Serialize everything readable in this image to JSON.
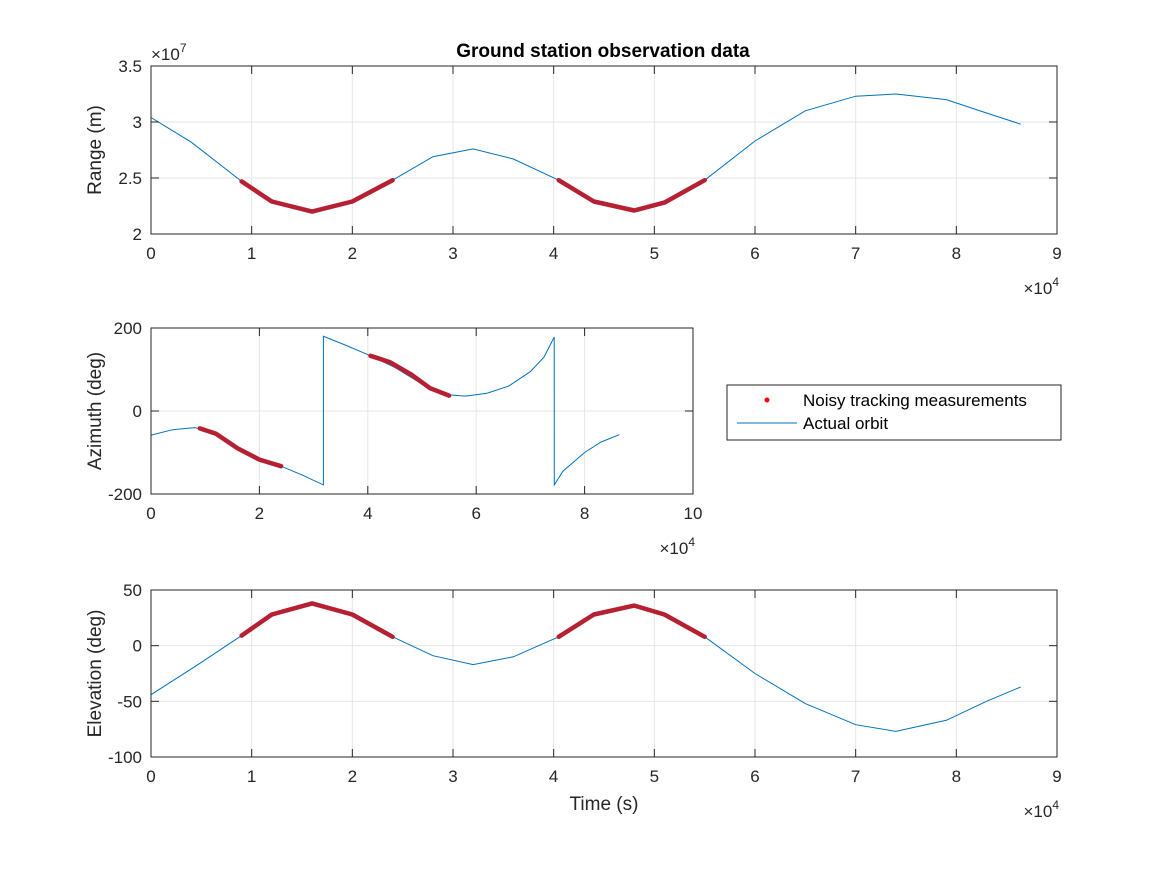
{
  "chart_data": [
    {
      "type": "line",
      "title": "Ground station observation data",
      "ylabel": "Range (m)",
      "xlabel": "",
      "xlim": [
        0,
        90000
      ],
      "ylim": [
        20000000,
        35000000
      ],
      "x_ticks": [
        0,
        10000,
        20000,
        30000,
        40000,
        50000,
        60000,
        70000,
        80000,
        90000
      ],
      "x_tick_labels": [
        "0",
        "1",
        "2",
        "3",
        "4",
        "5",
        "6",
        "7",
        "8",
        "9"
      ],
      "y_ticks": [
        20000000,
        25000000,
        30000000,
        35000000
      ],
      "y_tick_labels": [
        "2",
        "2.5",
        "3",
        "3.5"
      ],
      "x_multiplier": {
        "base": "×10",
        "exp": "4"
      },
      "y_multiplier": {
        "base": "×10",
        "exp": "7"
      },
      "grid": true,
      "line_x": [
        0,
        4000,
        9000,
        12000,
        16000,
        20000,
        24000,
        28000,
        32000,
        36000,
        40500,
        44000,
        48000,
        51000,
        55000,
        60000,
        65000,
        70000,
        74000,
        79000,
        83000,
        86400
      ],
      "line_y": [
        30400000,
        28200000,
        24700000,
        22900000,
        22000000,
        22900000,
        24800000,
        26900000,
        27600000,
        26700000,
        24800000,
        22900000,
        22100000,
        22800000,
        24800000,
        28300000,
        31000000,
        32300000,
        32500000,
        32000000,
        30800000,
        29800000
      ],
      "measurement_segments": [
        {
          "x": [
            9000,
            12000,
            16000,
            20000,
            24000
          ],
          "y": [
            24700000,
            22900000,
            22000000,
            22900000,
            24800000
          ]
        },
        {
          "x": [
            40500,
            44000,
            48000,
            51000,
            55000
          ],
          "y": [
            24800000,
            22900000,
            22100000,
            22800000,
            24800000
          ]
        }
      ]
    },
    {
      "type": "line",
      "title": "",
      "ylabel": "Azimuth (deg)",
      "xlabel": "",
      "xlim": [
        0,
        100000
      ],
      "ylim": [
        -200,
        200
      ],
      "x_ticks": [
        0,
        20000,
        40000,
        60000,
        80000,
        100000
      ],
      "x_tick_labels": [
        "0",
        "2",
        "4",
        "6",
        "8",
        "10"
      ],
      "y_ticks": [
        -200,
        0,
        200
      ],
      "y_tick_labels": [
        "-200",
        "0",
        "200"
      ],
      "x_multiplier": {
        "base": "×10",
        "exp": "4"
      },
      "grid": true,
      "line_x": [
        0,
        4000,
        8000,
        10000,
        14000,
        18000,
        22000,
        24000,
        28000,
        31800,
        31801,
        36000,
        40500,
        45000,
        50000,
        54000,
        58000,
        62000,
        66000,
        70000,
        72500,
        74400,
        74401,
        76000,
        80000,
        83000,
        86400
      ],
      "line_y": [
        -58,
        -45,
        -40,
        -45,
        -70,
        -104,
        -125,
        -133,
        -155,
        -178,
        180,
        158,
        133,
        105,
        65,
        40,
        36,
        43,
        60,
        95,
        130,
        178,
        -178,
        -145,
        -100,
        -75,
        -57
      ],
      "measurement_segments": [
        {
          "x": [
            9000,
            12000,
            16000,
            20000,
            24000
          ],
          "y": [
            -42,
            -55,
            -90,
            -117,
            -133
          ]
        },
        {
          "x": [
            40500,
            44000,
            48000,
            51500,
            55000
          ],
          "y": [
            133,
            118,
            88,
            55,
            37
          ]
        }
      ]
    },
    {
      "type": "line",
      "title": "",
      "ylabel": "Elevation (deg)",
      "xlabel": "Time (s)",
      "xlim": [
        0,
        90000
      ],
      "ylim": [
        -100,
        50
      ],
      "x_ticks": [
        0,
        10000,
        20000,
        30000,
        40000,
        50000,
        60000,
        70000,
        80000,
        90000
      ],
      "x_tick_labels": [
        "0",
        "1",
        "2",
        "3",
        "4",
        "5",
        "6",
        "7",
        "8",
        "9"
      ],
      "y_ticks": [
        -100,
        -50,
        0,
        50
      ],
      "y_tick_labels": [
        "-100",
        "-50",
        "0",
        "50"
      ],
      "x_multiplier": {
        "base": "×10",
        "exp": "4"
      },
      "grid": true,
      "line_x": [
        0,
        4500,
        9000,
        12000,
        16000,
        20000,
        24000,
        28000,
        32000,
        36000,
        40500,
        44000,
        48000,
        51000,
        55000,
        60000,
        65000,
        70000,
        74000,
        79000,
        83000,
        86400
      ],
      "line_y": [
        -44,
        -18,
        9,
        28,
        38,
        28,
        8,
        -9,
        -17,
        -10,
        8,
        28,
        36,
        28,
        8,
        -25,
        -52,
        -71,
        -77,
        -67,
        -50,
        -37
      ],
      "measurement_segments": [
        {
          "x": [
            9000,
            12000,
            16000,
            20000,
            24000
          ],
          "y": [
            9,
            28,
            38,
            28,
            8
          ]
        },
        {
          "x": [
            40500,
            44000,
            48000,
            51000,
            55000
          ],
          "y": [
            8,
            28,
            36,
            28,
            8
          ]
        }
      ]
    }
  ],
  "legend": {
    "items": [
      {
        "label": "Noisy tracking measurements",
        "marker": "dot",
        "color": "#ff0000"
      },
      {
        "label": "Actual orbit",
        "marker": "line",
        "color": "#0072bd"
      }
    ]
  },
  "colors": {
    "line": "#0072bd",
    "measurement": "#b52033",
    "grid": "#e6e6e6",
    "axes": "#262626"
  }
}
